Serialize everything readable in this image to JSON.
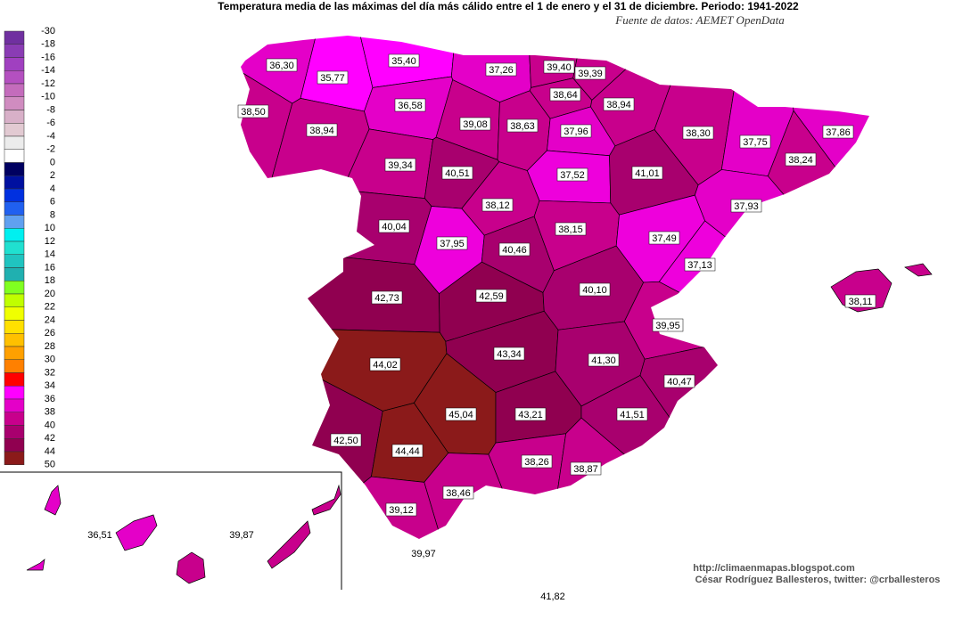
{
  "header": {
    "title": "Temperatura media de las máximas del  día más cálido entre el 1 de enero y el 31 de diciembre. Periodo: 1941-2022",
    "source": "Fuente de datos: AEMET OpenData"
  },
  "legend": {
    "labels": [
      -30,
      -18,
      -16,
      -14,
      -12,
      -10,
      -8,
      -6,
      -4,
      -2,
      0,
      2,
      4,
      6,
      8,
      10,
      12,
      14,
      16,
      18,
      20,
      22,
      24,
      26,
      28,
      30,
      32,
      34,
      36,
      38,
      40,
      42,
      44,
      50
    ],
    "colors": [
      "#7030a0",
      "#8a3cb4",
      "#a040c0",
      "#b450c0",
      "#c46cbc",
      "#d08cc0",
      "#d8b0c8",
      "#e2cad2",
      "#ececec",
      "#ffffff",
      "#000060",
      "#0010a0",
      "#0030e0",
      "#2060f0",
      "#60a0f0",
      "#00f0f0",
      "#20e0d0",
      "#20c4c0",
      "#20b0b0",
      "#80ff20",
      "#c0ff00",
      "#f0ff00",
      "#ffe000",
      "#ffc000",
      "#ffa000",
      "#ff8000",
      "#ff0000",
      "#ff00ff",
      "#e400c8",
      "#c8008c",
      "#a8006e",
      "#900050",
      "#8b1a1a"
    ]
  },
  "provinces": [
    {
      "label": "36,30",
      "color": "#e400c8"
    },
    {
      "label": "35,77",
      "color": "#ff00ff"
    },
    {
      "label": "35,40",
      "color": "#ff00ff"
    },
    {
      "label": "37,26",
      "color": "#e400c8"
    },
    {
      "label": "39,40",
      "color": "#c8008c"
    },
    {
      "label": "39,39",
      "color": "#c8008c"
    },
    {
      "label": "38,64",
      "color": "#c8008c"
    },
    {
      "label": "38,50",
      "color": "#c8008c"
    },
    {
      "label": "38,94",
      "color": "#c8008c"
    },
    {
      "label": "36,58",
      "color": "#e400c8"
    },
    {
      "label": "39,08",
      "color": "#c8008c"
    },
    {
      "label": "38,63",
      "color": "#c8008c"
    },
    {
      "label": "38,94",
      "color": "#c8008c"
    },
    {
      "label": "37,96",
      "color": "#e400c8"
    },
    {
      "label": "38,30",
      "color": "#c8008c"
    },
    {
      "label": "37,75",
      "color": "#e400c8"
    },
    {
      "label": "37,86",
      "color": "#e400c8"
    },
    {
      "label": "38,24",
      "color": "#c8008c"
    },
    {
      "label": "39,34",
      "color": "#c8008c"
    },
    {
      "label": "40,51",
      "color": "#a8006e"
    },
    {
      "label": "37,52",
      "color": "#ee00dc"
    },
    {
      "label": "41,01",
      "color": "#a8006e"
    },
    {
      "label": "37,93",
      "color": "#e400c8"
    },
    {
      "label": "38,12",
      "color": "#c8008c"
    },
    {
      "label": "40,04",
      "color": "#a8006e"
    },
    {
      "label": "37,95",
      "color": "#ee00dc"
    },
    {
      "label": "40,46",
      "color": "#a8006e"
    },
    {
      "label": "38,15",
      "color": "#c8008c"
    },
    {
      "label": "37,49",
      "color": "#ee00dc"
    },
    {
      "label": "37,13",
      "color": "#ee00dc"
    },
    {
      "label": "42,73",
      "color": "#900050"
    },
    {
      "label": "42,59",
      "color": "#900050"
    },
    {
      "label": "40,10",
      "color": "#a8006e"
    },
    {
      "label": "39,95",
      "color": "#c8008c"
    },
    {
      "label": "44,02",
      "color": "#8b1a1a"
    },
    {
      "label": "43,34",
      "color": "#900050"
    },
    {
      "label": "41,30",
      "color": "#a8006e"
    },
    {
      "label": "40,47",
      "color": "#a8006e"
    },
    {
      "label": "45,04",
      "color": "#8b1a1a"
    },
    {
      "label": "43,21",
      "color": "#900050"
    },
    {
      "label": "41,51",
      "color": "#a8006e"
    },
    {
      "label": "42,50",
      "color": "#900050"
    },
    {
      "label": "44,44",
      "color": "#8b1a1a"
    },
    {
      "label": "38,26",
      "color": "#c8008c"
    },
    {
      "label": "38,87",
      "color": "#c8008c"
    },
    {
      "label": "38,46",
      "color": "#c8008c"
    },
    {
      "label": "39,12",
      "color": "#c8008c"
    }
  ],
  "islands": [
    {
      "label": "38,11",
      "color": "#c8008c"
    },
    {
      "label": "36,51",
      "color": "#e400c8"
    },
    {
      "label": "39,87",
      "color": "#c8008c"
    }
  ],
  "cities": [
    {
      "label": "39,97"
    },
    {
      "label": "41,82"
    }
  ],
  "credits": [
    "http://climaenmapas.blogspot.com",
    "César Rodríguez Ballesteros, twitter: @crballesteros"
  ]
}
